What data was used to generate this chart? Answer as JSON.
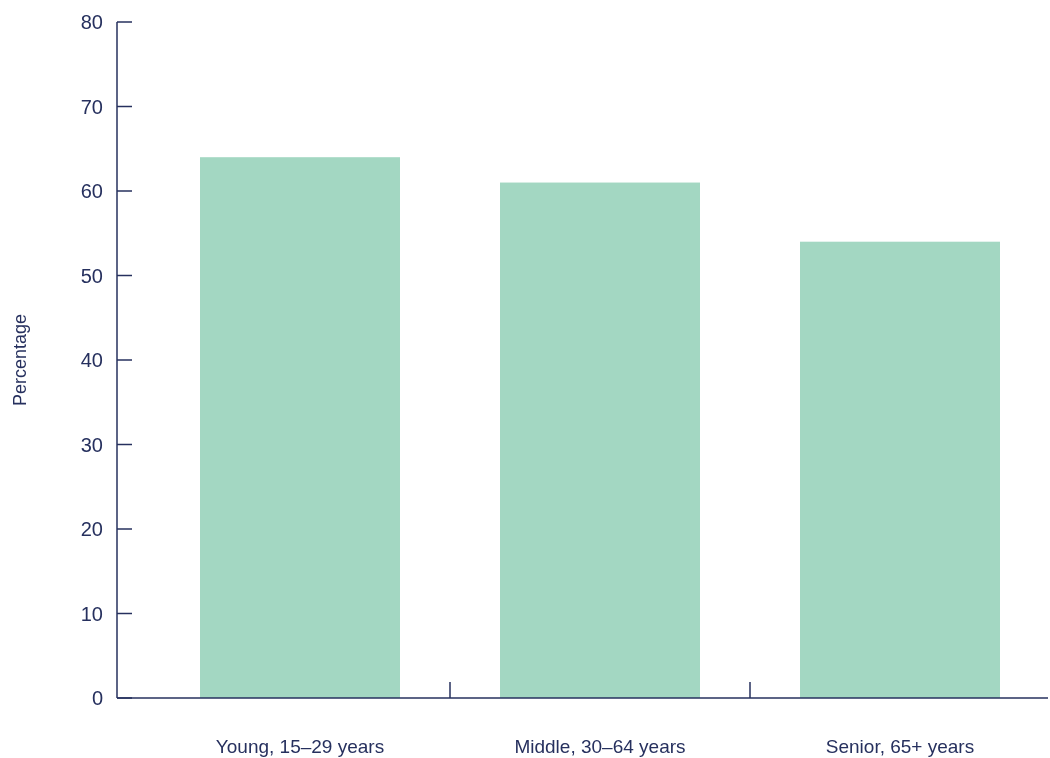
{
  "chart_data": {
    "type": "bar",
    "ylabel": "Percentage",
    "categories": [
      "Young, 15–29 years",
      "Middle, 30–64 years",
      "Senior, 65+ years"
    ],
    "values": [
      64,
      61,
      54
    ],
    "color": "#a3d7c2",
    "ylim": [
      0,
      80
    ],
    "yticks": [
      0,
      10,
      20,
      30,
      40,
      50,
      60,
      70,
      80
    ],
    "grid": false
  }
}
